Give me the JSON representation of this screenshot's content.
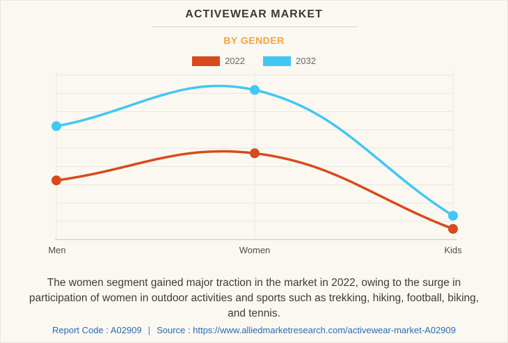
{
  "header": {
    "title": "ACTIVEWEAR MARKET",
    "subtitle": "BY GENDER"
  },
  "chart_data": {
    "type": "line",
    "categories": [
      "Men",
      "Women",
      "Kids"
    ],
    "series": [
      {
        "name": "2022",
        "color": "#d84a1b",
        "values": [
          36,
          52.5,
          6.5
        ]
      },
      {
        "name": "2032",
        "color": "#41c7f4",
        "values": [
          69,
          91,
          14.5
        ]
      }
    ],
    "title": "ACTIVEWEAR MARKET",
    "subtitle": "BY GENDER",
    "xlabel": "",
    "ylabel": "",
    "ylim": [
      0,
      100
    ],
    "y_axis_labeled": false,
    "grid": true,
    "legend_position": "top",
    "curve": "smooth-bezier",
    "note": "y-axis has no tick labels; values are relative estimates on a 0-100 scale"
  },
  "description": {
    "text": "The women segment gained major traction in the market in 2022, owing to the surge in participation of women in outdoor activities and sports such as trekking, hiking, football, biking, and tennis."
  },
  "footer": {
    "report_code": "Report Code : A02909",
    "separator": "|",
    "source_label": "Source :",
    "source_url": "https://www.alliedmarketresearch.com/activewear-market-A02909"
  },
  "colors": {
    "background": "#faf8f1",
    "gridline": "#e8e6e0",
    "axis_baseline": "#c6c4bf",
    "series_2022": "#d84a1b",
    "series_2032": "#41c7f4",
    "subtitle_accent": "#f9a13b",
    "footer_link": "#2a6bb5"
  }
}
